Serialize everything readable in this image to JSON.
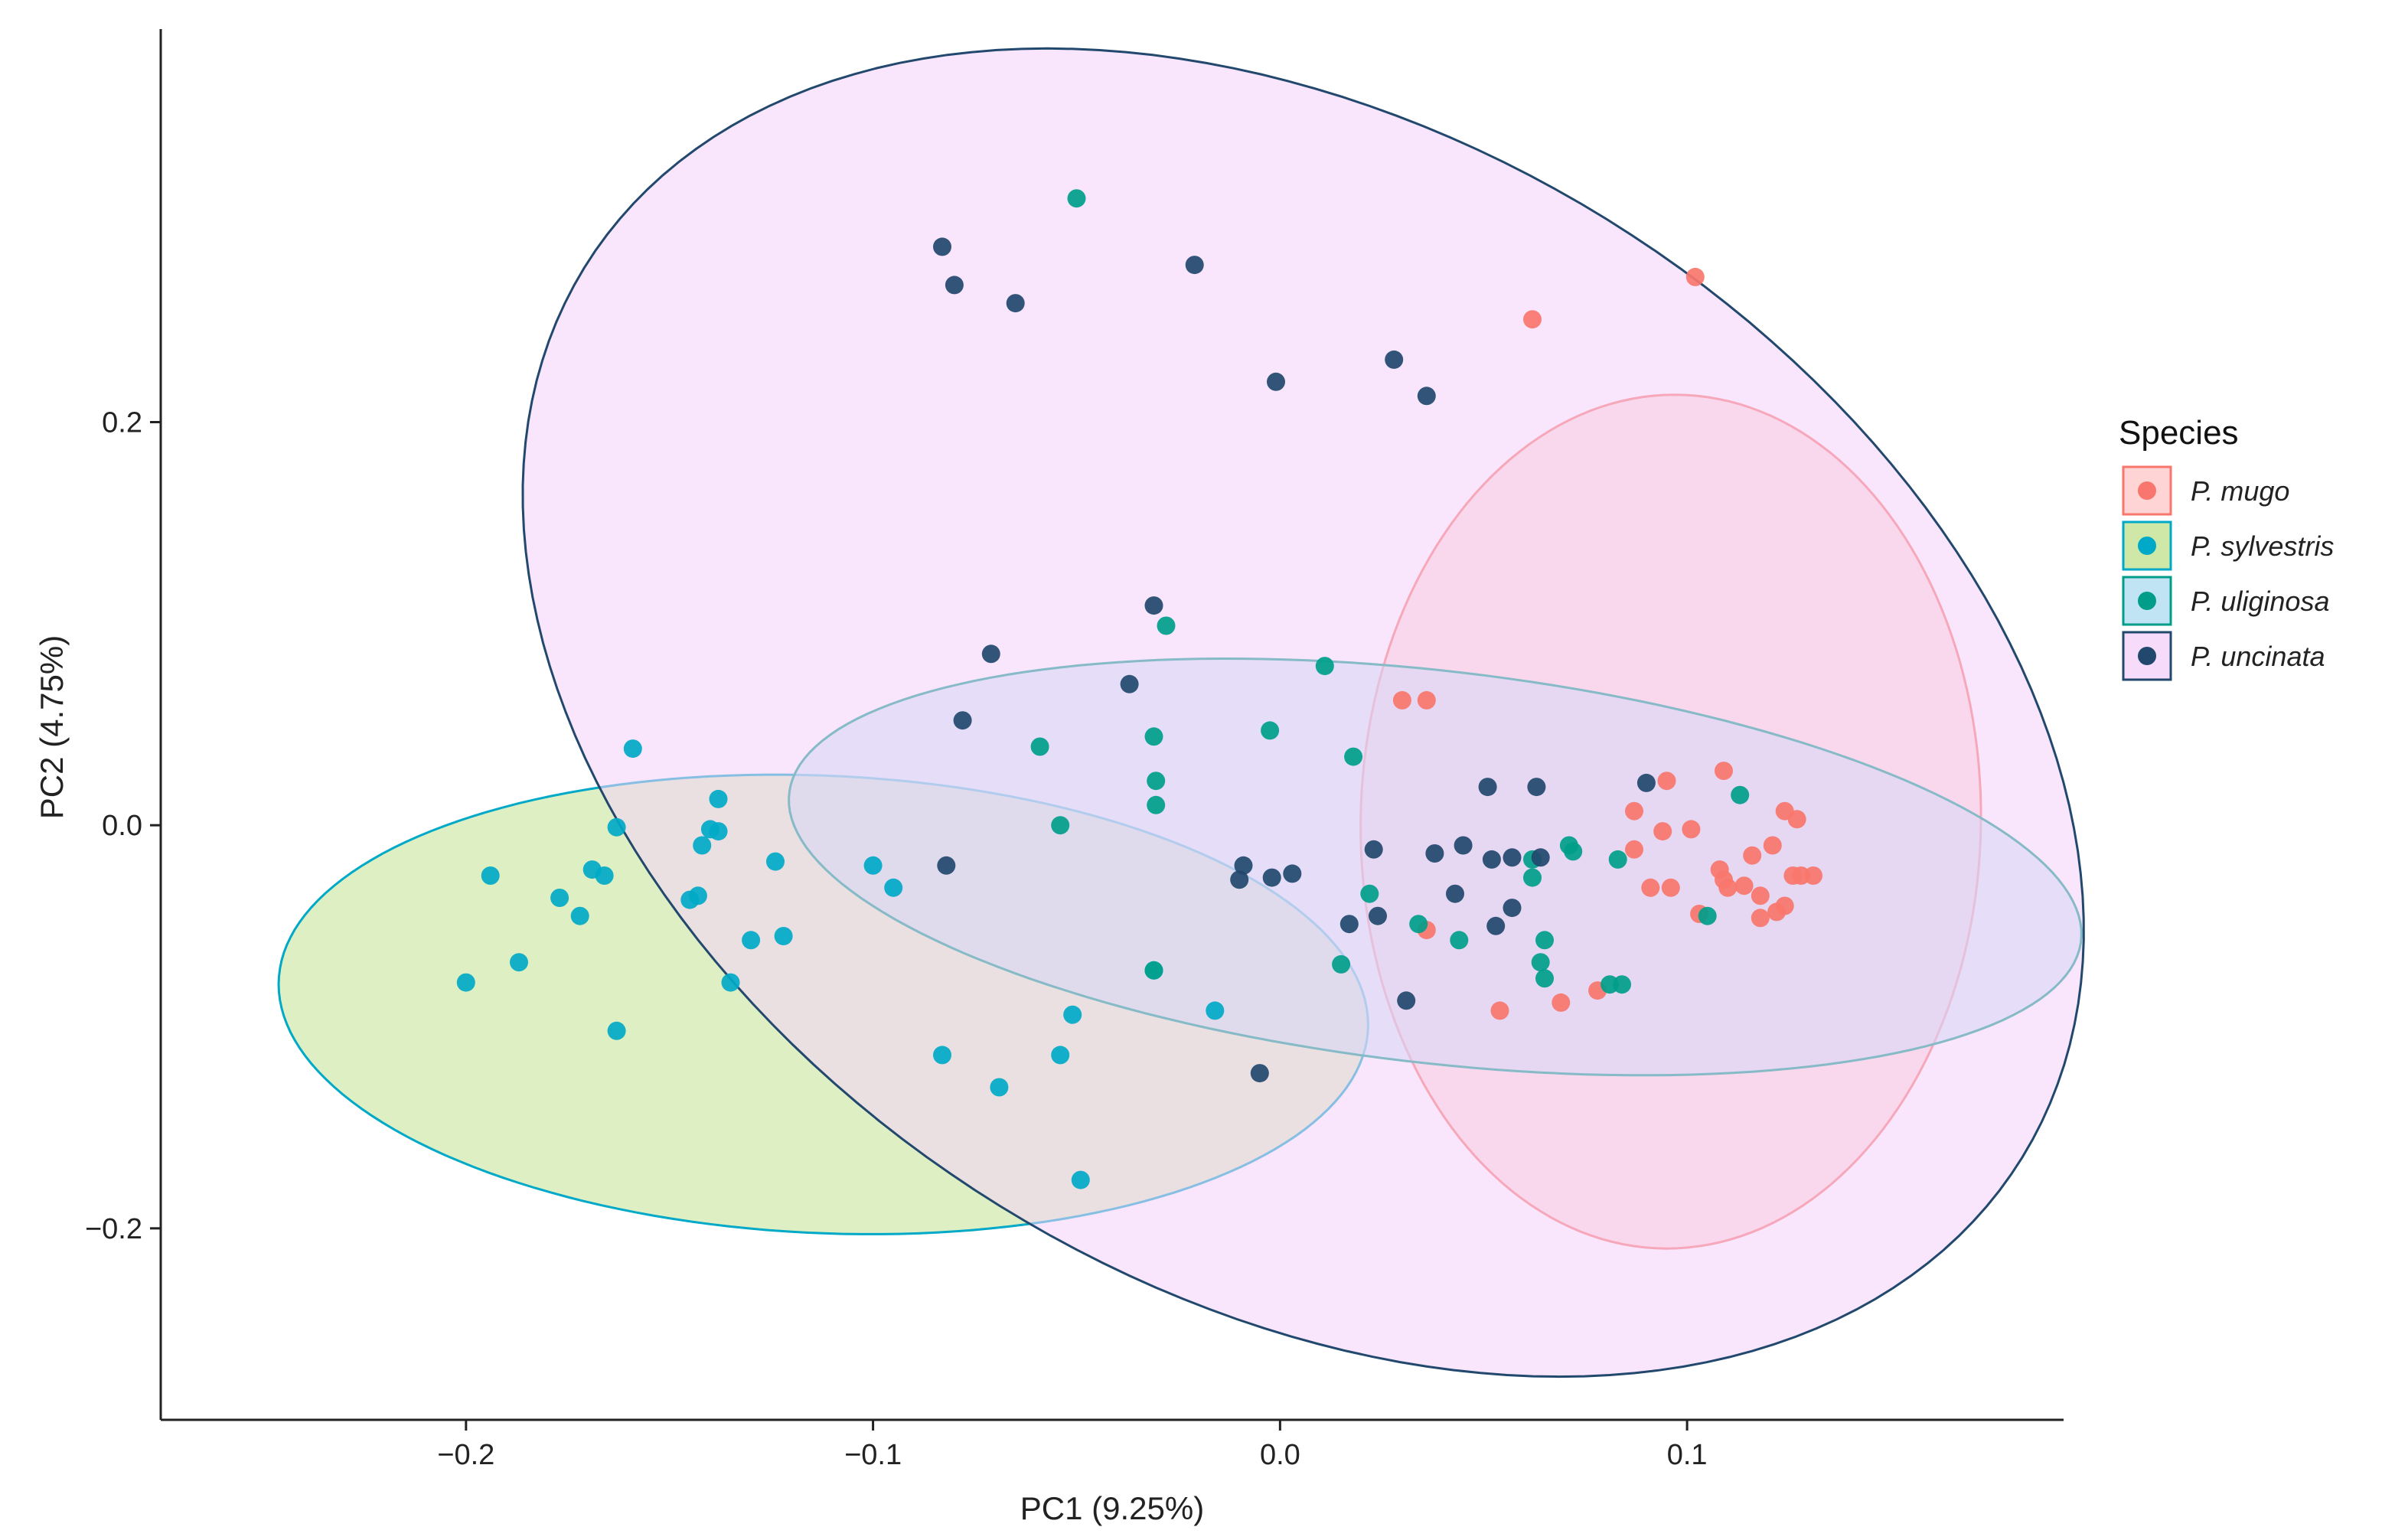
{
  "chart_data": {
    "type": "scatter",
    "title": "",
    "xlabel": "PC1 (9.25%)",
    "ylabel": "PC2 (4.75%)",
    "xlim": [
      -0.275,
      0.1925
    ],
    "ylim": [
      -0.295,
      0.395
    ],
    "x_ticks": [
      -0.2,
      -0.1,
      0.0,
      0.1
    ],
    "x_tick_labels": [
      "−0.2",
      "−0.1",
      "0.0",
      "0.1"
    ],
    "y_ticks": [
      -0.2,
      0.0,
      0.2
    ],
    "y_tick_labels": [
      "−0.2",
      "0.0",
      "0.2"
    ],
    "grid": false,
    "legend": {
      "title": "Species",
      "position": "right"
    },
    "series": [
      {
        "name": "P. mugo",
        "color": "#F8766D",
        "fill": "#FFC9C9",
        "points": [
          [
            0.062,
            0.251
          ],
          [
            0.102,
            0.272
          ],
          [
            0.03,
            0.062
          ],
          [
            0.036,
            0.062
          ],
          [
            0.095,
            0.022
          ],
          [
            0.109,
            0.027
          ],
          [
            0.124,
            0.007
          ],
          [
            0.127,
            0.003
          ],
          [
            0.087,
            0.007
          ],
          [
            0.094,
            -0.003
          ],
          [
            0.087,
            -0.012
          ],
          [
            0.101,
            -0.002
          ],
          [
            0.109,
            -0.027
          ],
          [
            0.121,
            -0.01
          ],
          [
            0.116,
            -0.015
          ],
          [
            0.128,
            -0.025
          ],
          [
            0.131,
            -0.025
          ],
          [
            0.091,
            -0.031
          ],
          [
            0.096,
            -0.031
          ],
          [
            0.11,
            -0.031
          ],
          [
            0.114,
            -0.03
          ],
          [
            0.126,
            -0.025
          ],
          [
            0.118,
            -0.035
          ],
          [
            0.124,
            -0.04
          ],
          [
            0.118,
            -0.046
          ],
          [
            0.122,
            -0.043
          ],
          [
            0.103,
            -0.044
          ],
          [
            0.036,
            -0.052
          ],
          [
            0.054,
            -0.092
          ],
          [
            0.069,
            -0.088
          ],
          [
            0.078,
            -0.082
          ],
          [
            0.108,
            -0.022
          ]
        ],
        "ellipse": {
          "cx": 0.096,
          "cy": 0.0018,
          "rx": 0.0762,
          "ry": 0.2118,
          "angle_deg": -0.3
        }
      },
      {
        "name": "P. sylvestris",
        "color": "#00A9C7",
        "fill": "#C3E191",
        "points": [
          [
            -0.159,
            0.038
          ],
          [
            -0.138,
            0.013
          ],
          [
            -0.163,
            -0.001
          ],
          [
            -0.14,
            -0.002
          ],
          [
            -0.138,
            -0.003
          ],
          [
            -0.142,
            -0.01
          ],
          [
            -0.194,
            -0.025
          ],
          [
            -0.177,
            -0.036
          ],
          [
            -0.169,
            -0.022
          ],
          [
            -0.166,
            -0.025
          ],
          [
            -0.172,
            -0.045
          ],
          [
            -0.145,
            -0.037
          ],
          [
            -0.143,
            -0.035
          ],
          [
            -0.124,
            -0.018
          ],
          [
            -0.1,
            -0.02
          ],
          [
            -0.095,
            -0.031
          ],
          [
            -0.13,
            -0.057
          ],
          [
            -0.122,
            -0.055
          ],
          [
            -0.187,
            -0.068
          ],
          [
            -0.2,
            -0.078
          ],
          [
            -0.135,
            -0.078
          ],
          [
            -0.163,
            -0.102
          ],
          [
            -0.083,
            -0.114
          ],
          [
            -0.069,
            -0.13
          ],
          [
            -0.054,
            -0.114
          ],
          [
            -0.051,
            -0.094
          ],
          [
            -0.031,
            -0.072
          ],
          [
            -0.016,
            -0.092
          ],
          [
            -0.049,
            -0.176
          ]
        ],
        "ellipse": {
          "cx": -0.1122,
          "cy": -0.0889,
          "rx": 0.1351,
          "ry": 0.1125,
          "angle_deg": -14.3
        }
      },
      {
        "name": "P. uliginosa",
        "color": "#009E8A",
        "fill": "#B2DDF1",
        "points": [
          [
            -0.05,
            0.311
          ],
          [
            -0.028,
            0.099
          ],
          [
            0.011,
            0.079
          ],
          [
            -0.031,
            0.044
          ],
          [
            -0.059,
            0.039
          ],
          [
            -0.0025,
            0.047
          ],
          [
            -0.0305,
            0.022
          ],
          [
            -0.0305,
            0.01
          ],
          [
            0.018,
            0.034
          ],
          [
            0.113,
            0.015
          ],
          [
            -0.054,
            0.0
          ],
          [
            0.071,
            -0.01
          ],
          [
            0.062,
            -0.017
          ],
          [
            0.072,
            -0.013
          ],
          [
            0.083,
            -0.017
          ],
          [
            0.062,
            -0.026
          ],
          [
            0.022,
            -0.034
          ],
          [
            0.034,
            -0.049
          ],
          [
            0.044,
            -0.057
          ],
          [
            0.065,
            -0.057
          ],
          [
            0.105,
            -0.045
          ],
          [
            0.015,
            -0.069
          ],
          [
            0.064,
            -0.068
          ],
          [
            0.065,
            -0.076
          ],
          [
            0.081,
            -0.079
          ],
          [
            0.084,
            -0.079
          ],
          [
            -0.031,
            -0.072
          ]
        ],
        "ellipse": {
          "cx": 0.0381,
          "cy": -0.0207,
          "rx": 0.1641,
          "ry": 0.0947,
          "angle_deg": -18.0
        }
      },
      {
        "name": "P. uncinata",
        "color": "#22486E",
        "fill": "#F4D2FA",
        "points": [
          [
            -0.083,
            0.287
          ],
          [
            -0.08,
            0.268
          ],
          [
            -0.065,
            0.259
          ],
          [
            -0.021,
            0.278
          ],
          [
            0.028,
            0.231
          ],
          [
            -0.001,
            0.22
          ],
          [
            0.036,
            0.213
          ],
          [
            -0.031,
            0.109
          ],
          [
            -0.071,
            0.085
          ],
          [
            -0.037,
            0.07
          ],
          [
            -0.078,
            0.052
          ],
          [
            0.051,
            0.019
          ],
          [
            0.063,
            0.019
          ],
          [
            0.09,
            0.021
          ],
          [
            0.023,
            -0.012
          ],
          [
            0.038,
            -0.014
          ],
          [
            0.045,
            -0.01
          ],
          [
            0.052,
            -0.017
          ],
          [
            0.057,
            -0.016
          ],
          [
            0.064,
            -0.016
          ],
          [
            -0.009,
            -0.02
          ],
          [
            -0.002,
            -0.026
          ],
          [
            -0.01,
            -0.027
          ],
          [
            0.003,
            -0.024
          ],
          [
            0.043,
            -0.034
          ],
          [
            0.057,
            -0.041
          ],
          [
            0.024,
            -0.045
          ],
          [
            0.017,
            -0.049
          ],
          [
            0.053,
            -0.05
          ],
          [
            0.031,
            -0.087
          ],
          [
            -0.082,
            -0.02
          ],
          [
            -0.005,
            -0.123
          ]
        ],
        "ellipse": {
          "cx": 0.0057,
          "cy": 0.0559,
          "rx": 0.1767,
          "ry": 0.3378,
          "angle_deg": 15.0
        }
      }
    ]
  }
}
